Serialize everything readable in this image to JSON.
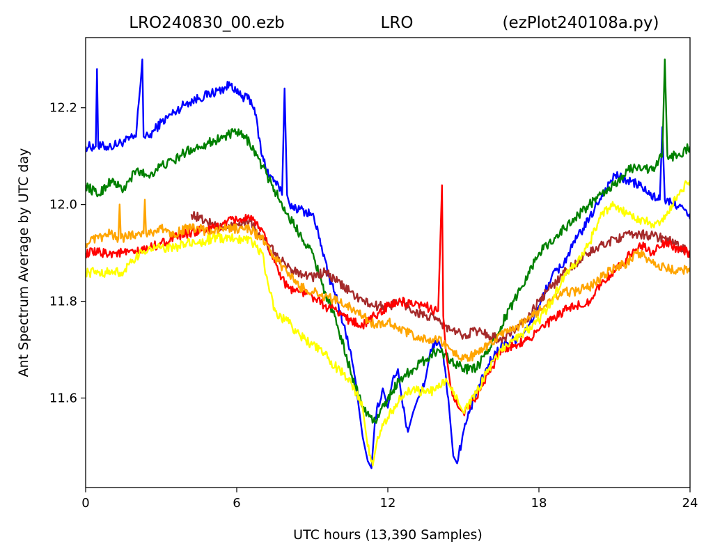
{
  "header": {
    "left": "LRO240830_00.ezb",
    "center": "LRO",
    "right": "(ezPlot240108a.py)"
  },
  "chart_data": {
    "type": "line",
    "xlabel": "UTC hours  (13,390 Samples)",
    "ylabel": "Ant Spectrum Average by UTC day",
    "xlim": [
      0,
      24
    ],
    "ylim": [
      11.415,
      12.345
    ],
    "x_ticks": [
      0,
      6,
      12,
      18,
      24
    ],
    "x_tick_labels": [
      "0",
      "6",
      "12",
      "18",
      "24"
    ],
    "y_ticks": [
      11.6,
      11.8,
      12.0,
      12.2
    ],
    "y_tick_labels": [
      "11.6",
      "11.8",
      "12.0",
      "12.2"
    ],
    "grid": false,
    "legend": "none",
    "series": [
      {
        "color": "#0000ff",
        "x": [
          0,
          0.4,
          0.45,
          0.5,
          1,
          1.5,
          2,
          2.25,
          2.3,
          2.5,
          3,
          3.5,
          4,
          4.5,
          5,
          5.5,
          5.8,
          6,
          6.3,
          6.5,
          6.7,
          7,
          7.3,
          7.5,
          7.8,
          7.9,
          8,
          8.1,
          8.5,
          9,
          9.3,
          9.6,
          10,
          10.5,
          10.8,
          11,
          11.2,
          11.35,
          11.5,
          11.8,
          12,
          12.2,
          12.4,
          12.6,
          12.8,
          13,
          13.2,
          13.5,
          13.7,
          14,
          14.2,
          14.4,
          14.6,
          14.75,
          15,
          15.3,
          15.6,
          16,
          16.5,
          17,
          17.5,
          18,
          18.5,
          19,
          19.5,
          20,
          20.5,
          21,
          21.5,
          22,
          22.4,
          22.8,
          22.9,
          23,
          23.3,
          23.6,
          24
        ],
        "y": [
          12.12,
          12.12,
          12.28,
          12.12,
          12.12,
          12.13,
          12.14,
          12.3,
          12.14,
          12.14,
          12.17,
          12.19,
          12.21,
          12.22,
          12.23,
          12.24,
          12.25,
          12.23,
          12.22,
          12.22,
          12.2,
          12.1,
          12.06,
          12.05,
          12.02,
          12.24,
          12.02,
          12.0,
          11.99,
          11.98,
          11.93,
          11.86,
          11.8,
          11.7,
          11.6,
          11.52,
          11.47,
          11.455,
          11.56,
          11.62,
          11.58,
          11.64,
          11.66,
          11.58,
          11.53,
          11.57,
          11.6,
          11.64,
          11.7,
          11.72,
          11.69,
          11.6,
          11.48,
          11.465,
          11.53,
          11.58,
          11.62,
          11.67,
          11.71,
          11.72,
          11.74,
          11.79,
          11.85,
          11.88,
          11.93,
          11.97,
          12.02,
          12.06,
          12.05,
          12.04,
          12.02,
          12.01,
          12.16,
          12.01,
          12.0,
          12.0,
          11.97
        ]
      },
      {
        "color": "#008000",
        "x": [
          0,
          0.5,
          1,
          1.5,
          2,
          2.5,
          3,
          3.5,
          4,
          4.5,
          5,
          5.5,
          6,
          6.5,
          7,
          7.5,
          8,
          8.5,
          9,
          9.5,
          10,
          10.5,
          11,
          11.5,
          12,
          12.5,
          13,
          13.5,
          14,
          14.5,
          15,
          15.5,
          16,
          17,
          18,
          19,
          20,
          21,
          21.5,
          22,
          22.5,
          22.9,
          23,
          23.1,
          23.5,
          24
        ],
        "y": [
          12.04,
          12.02,
          12.05,
          12.03,
          12.07,
          12.06,
          12.08,
          12.09,
          12.11,
          12.12,
          12.13,
          12.14,
          12.15,
          12.13,
          12.08,
          12.03,
          11.98,
          11.94,
          11.9,
          11.82,
          11.75,
          11.66,
          11.58,
          11.55,
          11.6,
          11.64,
          11.66,
          11.68,
          11.7,
          11.68,
          11.66,
          11.66,
          11.7,
          11.8,
          11.9,
          11.95,
          12.0,
          12.04,
          12.07,
          12.08,
          12.07,
          12.1,
          12.3,
          12.1,
          12.1,
          12.12
        ]
      },
      {
        "color": "#a52a2a",
        "x": [
          4.2,
          5,
          5.5,
          6,
          6.5,
          7,
          7.5,
          8,
          8.5,
          9,
          9.5,
          10,
          10.5,
          11,
          11.5,
          12,
          12.5,
          13,
          13.5,
          14,
          14.5,
          15,
          15.5,
          16,
          16.5,
          17,
          17.5,
          18,
          19,
          20,
          21,
          22,
          23,
          24
        ],
        "y": [
          11.98,
          11.96,
          11.95,
          11.96,
          11.97,
          11.93,
          11.9,
          11.87,
          11.86,
          11.85,
          11.86,
          11.84,
          11.82,
          11.8,
          11.79,
          11.79,
          11.8,
          11.78,
          11.77,
          11.76,
          11.74,
          11.73,
          11.74,
          11.73,
          11.72,
          11.74,
          11.76,
          11.8,
          11.86,
          11.9,
          11.93,
          11.94,
          11.93,
          11.9
        ]
      },
      {
        "color": "#ff0000",
        "x": [
          0,
          0.5,
          1,
          1.5,
          2,
          2.5,
          3,
          4,
          5,
          5.5,
          6,
          6.5,
          7,
          7.5,
          8,
          8.5,
          9,
          9.5,
          10,
          10.5,
          11,
          11.5,
          12,
          12.5,
          13,
          13.5,
          14,
          14.15,
          14.2,
          14.3,
          14.5,
          14.8,
          15,
          15.5,
          16,
          16.5,
          17,
          17.5,
          18,
          18.5,
          19,
          19.5,
          20,
          20.5,
          21,
          21.5,
          22,
          22.5,
          23,
          23.5,
          24
        ],
        "y": [
          11.9,
          11.9,
          11.9,
          11.9,
          11.9,
          11.91,
          11.92,
          11.94,
          11.95,
          11.96,
          11.97,
          11.97,
          11.95,
          11.88,
          11.83,
          11.82,
          11.81,
          11.79,
          11.78,
          11.76,
          11.75,
          11.77,
          11.79,
          11.8,
          11.79,
          11.79,
          11.78,
          12.04,
          11.77,
          11.7,
          11.62,
          11.58,
          11.57,
          11.6,
          11.65,
          11.7,
          11.71,
          11.72,
          11.74,
          11.76,
          11.78,
          11.79,
          11.8,
          11.84,
          11.86,
          11.89,
          11.92,
          11.9,
          11.92,
          11.91,
          11.9
        ]
      },
      {
        "color": "#ffa500",
        "x": [
          0,
          0.5,
          1,
          1.3,
          1.35,
          1.4,
          2,
          2.3,
          2.35,
          2.4,
          3,
          3.5,
          4,
          4.5,
          5,
          5.5,
          6,
          6.5,
          7,
          7.5,
          8,
          8.5,
          9,
          9.5,
          10,
          10.5,
          11,
          11.5,
          12,
          12.5,
          13,
          13.5,
          14,
          14.5,
          15,
          15.5,
          16,
          16.5,
          17,
          17.5,
          18,
          18.5,
          19,
          19.5,
          20,
          20.5,
          21,
          21.5,
          22,
          22.5,
          23,
          23.5,
          24
        ],
        "y": [
          11.92,
          11.93,
          11.94,
          11.93,
          12.0,
          11.93,
          11.94,
          11.94,
          12.01,
          11.94,
          11.95,
          11.94,
          11.95,
          11.95,
          11.94,
          11.95,
          11.95,
          11.95,
          11.93,
          11.89,
          11.86,
          11.83,
          11.82,
          11.81,
          11.8,
          11.79,
          11.77,
          11.75,
          11.76,
          11.74,
          11.73,
          11.72,
          11.72,
          11.7,
          11.68,
          11.69,
          11.71,
          11.73,
          11.74,
          11.76,
          11.78,
          11.8,
          11.82,
          11.82,
          11.83,
          11.85,
          11.87,
          11.88,
          11.9,
          11.88,
          11.87,
          11.86,
          11.87
        ]
      },
      {
        "color": "#ffff00",
        "x": [
          0,
          0.5,
          1,
          1.5,
          2,
          2.5,
          3,
          3.5,
          4,
          4.5,
          5,
          5.5,
          6,
          6.5,
          7,
          7.3,
          7.6,
          8,
          8.5,
          9,
          9.5,
          10,
          10.5,
          11,
          11.2,
          11.4,
          11.6,
          12,
          12.5,
          13,
          13.5,
          14,
          14.3,
          14.5,
          14.8,
          15,
          15.5,
          16,
          16.5,
          17,
          17.5,
          18,
          18.5,
          19,
          19.5,
          20,
          20.5,
          21,
          21.5,
          22,
          22.5,
          23,
          23.5,
          24
        ],
        "y": [
          11.86,
          11.86,
          11.86,
          11.86,
          11.89,
          11.91,
          11.91,
          11.91,
          11.92,
          11.92,
          11.93,
          11.93,
          11.93,
          11.93,
          11.9,
          11.82,
          11.77,
          11.76,
          11.73,
          11.71,
          11.69,
          11.66,
          11.64,
          11.58,
          11.5,
          11.46,
          11.52,
          11.56,
          11.6,
          11.62,
          11.61,
          11.62,
          11.64,
          11.62,
          11.59,
          11.57,
          11.61,
          11.66,
          11.7,
          11.72,
          11.74,
          11.76,
          11.8,
          11.85,
          11.88,
          11.92,
          11.98,
          12.0,
          11.98,
          11.97,
          11.96,
          11.97,
          12.02,
          12.05
        ]
      }
    ]
  }
}
